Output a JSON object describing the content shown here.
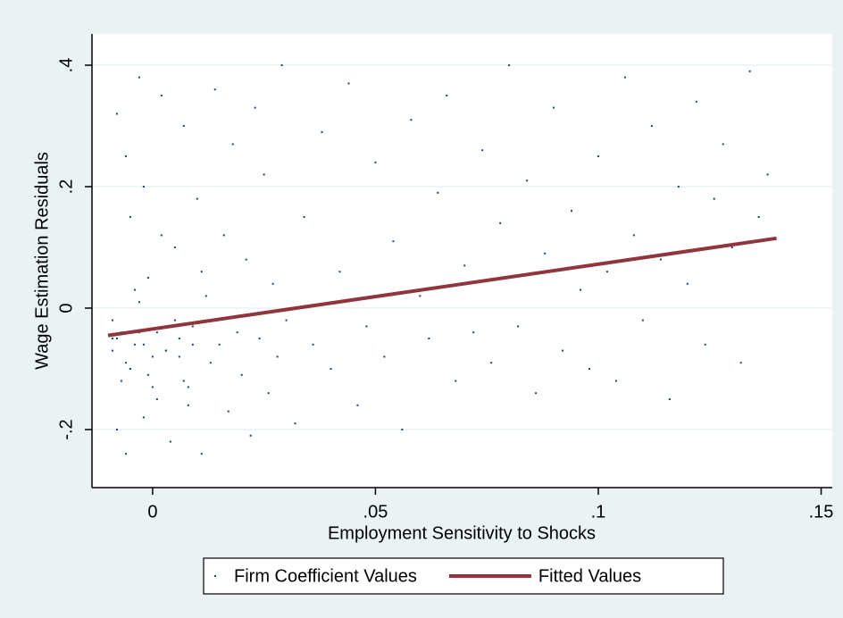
{
  "chart_data": {
    "type": "scatter",
    "xlabel": "Employment Sensitivity to Shocks",
    "ylabel": "Wage Estimation Residuals",
    "xlim": [
      -0.0136,
      0.1525
    ],
    "ylim": [
      -0.2956,
      0.4515
    ],
    "xticks": [
      {
        "value": 0,
        "label": "0"
      },
      {
        "value": 0.05,
        "label": ".05"
      },
      {
        "value": 0.1,
        "label": ".1"
      },
      {
        "value": 0.15,
        "label": ".15"
      }
    ],
    "yticks": [
      {
        "value": -0.2,
        "label": "-.2"
      },
      0,
      {
        "value": 0.2,
        "label": ".2"
      },
      {
        "value": 0.4,
        "label": ".4"
      }
    ],
    "grid": true,
    "legend": "bottom",
    "series": [
      {
        "name": "Firm Coefficient Values",
        "color": "#1a476f",
        "type": "scatter",
        "x": [
          -0.009,
          -0.008,
          -0.007,
          -0.006,
          -0.005,
          -0.004,
          -0.003,
          -0.002,
          -0.001,
          0.0,
          -0.009,
          -0.008,
          -0.006,
          -0.005,
          -0.003,
          -0.002,
          0.001,
          0.002,
          0.003,
          0.004,
          0.005,
          0.006,
          0.007,
          0.008,
          0.009,
          0.01,
          0.011,
          0.012,
          0.013,
          0.014,
          0.015,
          0.016,
          0.017,
          0.018,
          0.019,
          0.02,
          0.021,
          0.022,
          0.023,
          0.024,
          0.025,
          0.026,
          0.027,
          0.028,
          0.029,
          0.03,
          0.032,
          0.034,
          0.036,
          0.038,
          0.04,
          0.042,
          0.044,
          0.046,
          0.048,
          0.05,
          0.052,
          0.054,
          0.056,
          0.058,
          0.06,
          0.062,
          0.064,
          0.066,
          0.068,
          0.07,
          0.072,
          0.074,
          0.076,
          0.078,
          0.08,
          0.082,
          0.084,
          0.086,
          0.088,
          0.09,
          0.092,
          0.094,
          0.096,
          0.098,
          0.1,
          0.102,
          0.104,
          0.106,
          0.108,
          0.11,
          0.112,
          0.114,
          0.116,
          0.118,
          0.12,
          0.122,
          0.124,
          0.126,
          0.128,
          0.13,
          0.132,
          0.134,
          0.136,
          0.138,
          -0.009,
          -0.007,
          -0.005,
          -0.004,
          -0.002,
          0.0,
          0.002,
          0.004,
          0.006,
          0.008,
          -0.008,
          -0.006,
          -0.003,
          -0.001,
          0.001,
          0.003,
          0.005,
          0.007,
          0.009,
          0.011
        ],
        "values": [
          -0.05,
          0.32,
          -0.12,
          -0.24,
          0.15,
          -0.06,
          0.38,
          -0.18,
          0.05,
          -0.08,
          -0.02,
          -0.2,
          0.25,
          -0.1,
          -0.04,
          0.2,
          -0.15,
          0.35,
          -0.07,
          -0.22,
          0.1,
          -0.05,
          0.3,
          -0.13,
          -0.03,
          0.18,
          -0.24,
          0.02,
          -0.09,
          0.36,
          -0.06,
          0.12,
          -0.17,
          0.27,
          -0.04,
          -0.11,
          0.08,
          -0.21,
          0.33,
          -0.05,
          0.22,
          -0.14,
          0.04,
          -0.08,
          0.4,
          -0.02,
          -0.19,
          0.15,
          -0.06,
          0.29,
          -0.1,
          0.06,
          0.37,
          -0.16,
          -0.03,
          0.24,
          -0.08,
          0.11,
          -0.2,
          0.31,
          0.02,
          -0.05,
          0.19,
          0.35,
          -0.12,
          0.07,
          -0.04,
          0.26,
          -0.09,
          0.14,
          0.4,
          -0.03,
          0.21,
          -0.14,
          0.09,
          0.33,
          -0.07,
          0.16,
          0.03,
          -0.1,
          0.25,
          0.06,
          -0.12,
          0.38,
          0.12,
          -0.02,
          0.3,
          0.08,
          -0.15,
          0.2,
          0.04,
          0.34,
          -0.06,
          0.18,
          0.27,
          0.1,
          -0.09,
          0.39,
          0.15,
          0.22,
          -0.07,
          -0.04,
          -0.1,
          0.03,
          -0.06,
          -0.13,
          0.12,
          -0.03,
          -0.08,
          -0.16,
          -0.05,
          -0.09,
          0.01,
          -0.11,
          -0.04,
          -0.07,
          -0.02,
          -0.12,
          -0.06,
          0.06
        ]
      },
      {
        "name": "Fitted Values",
        "color": "#90353b",
        "type": "line",
        "x": [
          -0.01,
          0.14
        ],
        "values": [
          -0.045,
          0.115
        ]
      }
    ]
  }
}
